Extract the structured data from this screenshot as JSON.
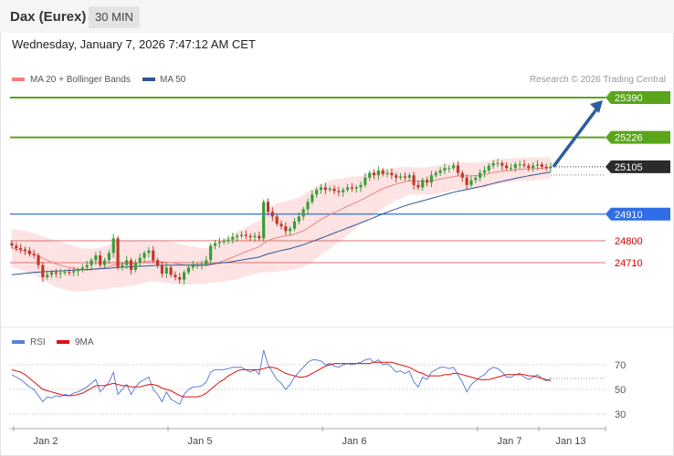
{
  "header": {
    "title": "Dax (Eurex)",
    "timeframe": "30 MIN"
  },
  "timestamp": "Wednesday, January 7, 2026 7:47:12 AM CET",
  "legend": [
    {
      "label": "MA 20 + Bollinger Bands",
      "color": "#f08080"
    },
    {
      "label": "MA 50",
      "color": "#2f5597"
    }
  ],
  "watermark": "Research © 2026 Trading Central",
  "colors": {
    "up": "#3a9e3a",
    "down": "#c0392b",
    "target": "#5aa51a",
    "pivot": "#2f6ee5",
    "support": "#e07070",
    "last": "#2b2b2b",
    "arrow": "#2e5c9e"
  },
  "chart_data": [
    {
      "type": "candlestick",
      "ylim": [
        24560,
        25480
      ],
      "x_tick_labels": [
        "Jan 2",
        "Jan 5",
        "Jan 6",
        "Jan 7",
        "Jan 13"
      ],
      "levels": [
        {
          "value": 25390,
          "label": "25390",
          "style": "target"
        },
        {
          "value": 25226,
          "label": "25226",
          "style": "target"
        },
        {
          "value": 25105,
          "label": "25105",
          "style": "last"
        },
        {
          "value": 24910,
          "label": "24910",
          "style": "pivot"
        },
        {
          "value": 24800,
          "label": "24800",
          "style": "support"
        },
        {
          "value": 24710,
          "label": "24710",
          "style": "support"
        }
      ],
      "close": [
        24780,
        24770,
        24765,
        24760,
        24745,
        24740,
        24700,
        24650,
        24660,
        24670,
        24665,
        24668,
        24672,
        24670,
        24675,
        24680,
        24690,
        24700,
        24720,
        24740,
        24700,
        24720,
        24750,
        24810,
        24690,
        24700,
        24720,
        24680,
        24710,
        24730,
        24750,
        24760,
        24720,
        24700,
        24665,
        24690,
        24660,
        24650,
        24640,
        24670,
        24690,
        24700,
        24700,
        24705,
        24720,
        24780,
        24790,
        24795,
        24800,
        24805,
        24815,
        24820,
        24825,
        24820,
        24815,
        24820,
        24810,
        24960,
        24920,
        24900,
        24870,
        24860,
        24840,
        24850,
        24880,
        24900,
        24930,
        24960,
        24990,
        25010,
        25020,
        25010,
        25015,
        25005,
        25000,
        25010,
        25020,
        25015,
        25020,
        25030,
        25060,
        25080,
        25070,
        25090,
        25075,
        25080,
        25070,
        25060,
        25065,
        25060,
        25070,
        25030,
        25020,
        25050,
        25040,
        25070,
        25080,
        25090,
        25100,
        25100,
        25110,
        25080,
        25060,
        25030,
        25050,
        25060,
        25080,
        25090,
        25110,
        25120,
        25120,
        25110,
        25100,
        25100,
        25115,
        25115,
        25110,
        25100,
        25110,
        25115,
        25105,
        25100,
        25105
      ],
      "open": [
        24790,
        24780,
        24770,
        24765,
        24760,
        24745,
        24740,
        24700,
        24650,
        24660,
        24670,
        24665,
        24668,
        24672,
        24670,
        24675,
        24680,
        24690,
        24700,
        24720,
        24740,
        24700,
        24720,
        24750,
        24810,
        24690,
        24700,
        24720,
        24680,
        24710,
        24730,
        24750,
        24760,
        24720,
        24700,
        24665,
        24690,
        24660,
        24650,
        24640,
        24670,
        24690,
        24700,
        24700,
        24705,
        24720,
        24780,
        24790,
        24795,
        24800,
        24805,
        24815,
        24820,
        24825,
        24820,
        24815,
        24820,
        24810,
        24960,
        24920,
        24900,
        24870,
        24860,
        24840,
        24850,
        24880,
        24900,
        24930,
        24960,
        24990,
        25010,
        25020,
        25010,
        25015,
        25005,
        25000,
        25010,
        25020,
        25015,
        25020,
        25030,
        25060,
        25080,
        25070,
        25090,
        25075,
        25080,
        25070,
        25060,
        25065,
        25060,
        25070,
        25030,
        25020,
        25050,
        25040,
        25070,
        25080,
        25090,
        25100,
        25100,
        25110,
        25080,
        25060,
        25030,
        25050,
        25060,
        25080,
        25090,
        25110,
        25120,
        25120,
        25110,
        25100,
        25100,
        25115,
        25115,
        25110,
        25100,
        25110,
        25115,
        25105,
        25100
      ],
      "ma20": [
        24770,
        24766,
        24762,
        24757,
        24752,
        24746,
        24738,
        24728,
        24720,
        24712,
        24705,
        24699,
        24694,
        24690,
        24686,
        24683,
        24681,
        24680,
        24681,
        24684,
        24686,
        24689,
        24694,
        24701,
        24703,
        24705,
        24707,
        24707,
        24708,
        24710,
        24713,
        24716,
        24717,
        24716,
        24713,
        24712,
        24710,
        24707,
        24703,
        24701,
        24700,
        24699,
        24698,
        24697,
        24697,
        24701,
        24706,
        24712,
        24718,
        24725,
        24732,
        24740,
        24748,
        24755,
        24762,
        24769,
        24775,
        24790,
        24800,
        24808,
        24813,
        24817,
        24820,
        24823,
        24828,
        24834,
        24842,
        24852,
        24864,
        24876,
        24888,
        24898,
        24908,
        24917,
        24925,
        24934,
        24943,
        24951,
        24959,
        24967,
        24977,
        24987,
        24996,
        25006,
        25014,
        25022,
        25028,
        25034,
        25039,
        25043,
        25047,
        25047,
        25046,
        25047,
        25047,
        25049,
        25051,
        25054,
        25058,
        25061,
        25065,
        25067,
        25068,
        25067,
        25068,
        25069,
        25071,
        25073,
        25077,
        25081,
        25085,
        25087,
        25089,
        25090,
        25092,
        25094,
        25095,
        25096,
        25097,
        25098,
        25099,
        25100,
        25101
      ],
      "ma50": [
        24660,
        24662,
        24664,
        24666,
        24668,
        24670,
        24671,
        24672,
        24673,
        24674,
        24675,
        24676,
        24677,
        24678,
        24679,
        24680,
        24681,
        24682,
        24683,
        24684,
        24685,
        24686,
        24687,
        24689,
        24690,
        24691,
        24692,
        24693,
        24694,
        24695,
        24696,
        24697,
        24698,
        24699,
        24699,
        24700,
        24700,
        24700,
        24700,
        24700,
        24700,
        24701,
        24701,
        24702,
        24702,
        24704,
        24706,
        24708,
        24710,
        24712,
        24715,
        24718,
        24721,
        24724,
        24727,
        24730,
        24733,
        24740,
        24746,
        24751,
        24756,
        24760,
        24764,
        24768,
        24773,
        24778,
        24784,
        24790,
        24797,
        24804,
        24811,
        24818,
        24825,
        24832,
        24839,
        24846,
        24853,
        24860,
        24867,
        24874,
        24881,
        24889,
        24896,
        24904,
        24911,
        24918,
        24925,
        24931,
        24938,
        24944,
        24950,
        24955,
        24960,
        24965,
        24970,
        24975,
        24980,
        24985,
        24990,
        24995,
        25000,
        25004,
        25008,
        25011,
        25015,
        25019,
        25023,
        25027,
        25032,
        25036,
        25041,
        25045,
        25049,
        25053,
        25057,
        25061,
        25064,
        25068,
        25071,
        25074,
        25077,
        25080,
        25083
      ],
      "bb_halfwidth": [
        80,
        80,
        82,
        84,
        85,
        86,
        88,
        90,
        92,
        94,
        95,
        96,
        96,
        95,
        94,
        92,
        90,
        88,
        86,
        85,
        86,
        88,
        90,
        94,
        96,
        95,
        94,
        92,
        90,
        88,
        86,
        85,
        84,
        84,
        85,
        86,
        86,
        85,
        84,
        82,
        80,
        78,
        76,
        74,
        72,
        74,
        78,
        82,
        86,
        90,
        94,
        98,
        100,
        102,
        104,
        106,
        108,
        120,
        130,
        136,
        140,
        142,
        143,
        144,
        145,
        146,
        148,
        150,
        150,
        148,
        146,
        144,
        140,
        136,
        130,
        124,
        118,
        112,
        106,
        100,
        96,
        92,
        88,
        84,
        80,
        76,
        72,
        68,
        64,
        60,
        58,
        56,
        56,
        56,
        56,
        58,
        58,
        58,
        58,
        56,
        56,
        56,
        56,
        56,
        55,
        54,
        54,
        53,
        52,
        52,
        51,
        50,
        50,
        50,
        49,
        48,
        48,
        48,
        47,
        46,
        46,
        45,
        44
      ],
      "rsi": [
        62,
        60,
        58,
        55,
        52,
        50,
        45,
        40,
        44,
        43,
        45,
        44,
        46,
        45,
        47,
        48,
        50,
        52,
        55,
        58,
        48,
        52,
        56,
        64,
        46,
        50,
        54,
        46,
        52,
        56,
        58,
        60,
        50,
        46,
        40,
        48,
        42,
        40,
        38,
        46,
        50,
        52,
        52,
        53,
        56,
        64,
        66,
        66,
        66,
        67,
        68,
        68,
        68,
        66,
        64,
        66,
        62,
        82,
        70,
        64,
        58,
        55,
        50,
        54,
        60,
        64,
        68,
        72,
        74,
        74,
        73,
        70,
        71,
        69,
        68,
        70,
        71,
        70,
        71,
        72,
        74,
        75,
        72,
        74,
        70,
        71,
        68,
        64,
        65,
        63,
        65,
        56,
        52,
        60,
        58,
        64,
        66,
        68,
        68,
        67,
        68,
        62,
        56,
        48,
        54,
        57,
        60,
        62,
        66,
        68,
        67,
        64,
        60,
        60,
        62,
        63,
        60,
        58,
        60,
        62,
        59,
        57,
        59
      ],
      "rsi_ma9": [
        66,
        65,
        64,
        62,
        59,
        56,
        53,
        50,
        49,
        48,
        47,
        46,
        45,
        45,
        45,
        46,
        47,
        49,
        51,
        53,
        53,
        53,
        54,
        55,
        54,
        53,
        53,
        52,
        52,
        52,
        53,
        54,
        54,
        53,
        51,
        50,
        49,
        47,
        45,
        44,
        44,
        44,
        44,
        45,
        47,
        50,
        53,
        56,
        58,
        61,
        63,
        65,
        66,
        66,
        66,
        66,
        66,
        67,
        68,
        68,
        67,
        65,
        63,
        62,
        61,
        60,
        60,
        61,
        63,
        65,
        67,
        69,
        70,
        71,
        71,
        71,
        71,
        71,
        71,
        71,
        71,
        71,
        72,
        72,
        72,
        72,
        72,
        71,
        70,
        69,
        68,
        66,
        64,
        63,
        61,
        61,
        61,
        61,
        62,
        62,
        63,
        63,
        62,
        61,
        60,
        59,
        58,
        58,
        58,
        59,
        60,
        61,
        62,
        62,
        62,
        62,
        62,
        61,
        61,
        60,
        59,
        58,
        57
      ],
      "rsi_levels": [
        70,
        50,
        30
      ]
    }
  ]
}
